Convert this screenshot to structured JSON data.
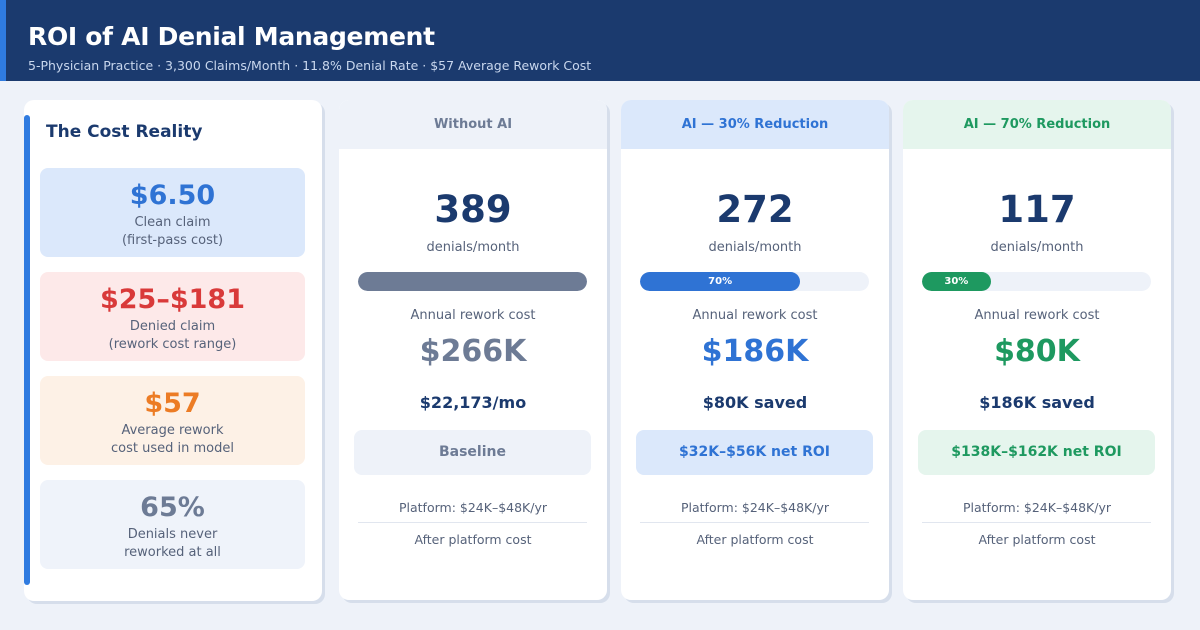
{
  "header": {
    "title": "ROI of AI Denial Management",
    "subtitle": "5-Physician Practice · 3,300 Claims/Month · 11.8% Denial Rate · $57 Average Rework Cost"
  },
  "cost_reality": {
    "title": "The Cost Reality",
    "stats": [
      {
        "value": "$6.50",
        "line1": "Clean claim",
        "line2": "(first-pass cost)"
      },
      {
        "value": "$25–$181",
        "line1": "Denied claim",
        "line2": "(rework cost range)"
      },
      {
        "value": "$57",
        "line1": "Average rework",
        "line2": "cost used in model"
      },
      {
        "value": "65%",
        "line1": "Denials never",
        "line2": "reworked at all"
      }
    ]
  },
  "scenarios": [
    {
      "heading": "Without AI",
      "denials": "389",
      "denials_unit": "denials/month",
      "bar_fraction": 1.0,
      "bar_label": "",
      "annual_label": "Annual rework cost",
      "annual_cost": "$266K",
      "secondary": "$22,173/mo",
      "roi": "Baseline",
      "platform": "Platform: $24K–$48K/yr",
      "after": "After platform cost"
    },
    {
      "heading": "AI — 30% Reduction",
      "denials": "272",
      "denials_unit": "denials/month",
      "bar_fraction": 0.7,
      "bar_label": "70%",
      "annual_label": "Annual rework cost",
      "annual_cost": "$186K",
      "secondary": "$80K saved",
      "roi": "$32K–$56K net ROI",
      "platform": "Platform: $24K–$48K/yr",
      "after": "After platform cost"
    },
    {
      "heading": "AI — 70% Reduction",
      "denials": "117",
      "denials_unit": "denials/month",
      "bar_fraction": 0.3,
      "bar_label": "30%",
      "annual_label": "Annual rework cost",
      "annual_cost": "$80K",
      "secondary": "$186K saved",
      "roi": "$138K–$162K net ROI",
      "platform": "Platform: $24K–$48K/yr",
      "after": "After platform cost"
    }
  ],
  "colors": {
    "header_bg": "#1b3a6e",
    "accent_blue": "#2f73d4",
    "accent_green": "#1e9960",
    "neutral": "#6d7b95",
    "red": "#d93a3a",
    "orange": "#ec7c25"
  }
}
